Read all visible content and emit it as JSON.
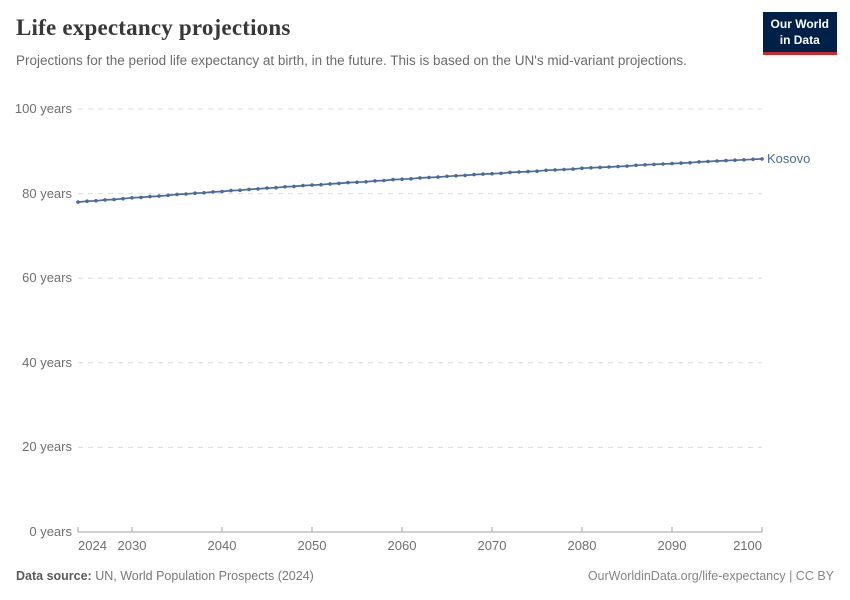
{
  "header": {
    "title": "Life expectancy projections",
    "subtitle": "Projections for the period life expectancy at birth, in the future. This is based on the UN's mid-variant projections."
  },
  "logo": {
    "line1": "Our World",
    "line2": "in Data",
    "bg_color": "#002147",
    "accent_color": "#d0262e"
  },
  "chart_data": {
    "type": "line",
    "title": "Life expectancy projections",
    "xlabel": "",
    "ylabel": "",
    "xlim": [
      2024,
      2100
    ],
    "ylim": [
      0,
      100
    ],
    "x_ticks": [
      2024,
      2030,
      2040,
      2050,
      2060,
      2070,
      2080,
      2090,
      2100
    ],
    "y_ticks": [
      0,
      20,
      40,
      60,
      80,
      100
    ],
    "y_tick_suffix": " years",
    "grid": "horizontal-dashed",
    "grid_color": "#dcdcdc",
    "axis_color": "#a3a3a3",
    "tick_label_color": "#6f6f6f",
    "legend_position": "end-of-line",
    "series": [
      {
        "name": "Kosovo",
        "color": "#4C6A9C",
        "x": [
          2024,
          2025,
          2026,
          2027,
          2028,
          2029,
          2030,
          2031,
          2032,
          2033,
          2034,
          2035,
          2036,
          2037,
          2038,
          2039,
          2040,
          2041,
          2042,
          2043,
          2044,
          2045,
          2046,
          2047,
          2048,
          2049,
          2050,
          2051,
          2052,
          2053,
          2054,
          2055,
          2056,
          2057,
          2058,
          2059,
          2060,
          2061,
          2062,
          2063,
          2064,
          2065,
          2066,
          2067,
          2068,
          2069,
          2070,
          2071,
          2072,
          2073,
          2074,
          2075,
          2076,
          2077,
          2078,
          2079,
          2080,
          2081,
          2082,
          2083,
          2084,
          2085,
          2086,
          2087,
          2088,
          2089,
          2090,
          2091,
          2092,
          2093,
          2094,
          2095,
          2096,
          2097,
          2098,
          2099,
          2100
        ],
        "values": [
          78.0,
          78.2,
          78.3,
          78.5,
          78.6,
          78.8,
          79.0,
          79.1,
          79.3,
          79.4,
          79.6,
          79.8,
          79.9,
          80.1,
          80.2,
          80.4,
          80.5,
          80.7,
          80.8,
          81.0,
          81.1,
          81.3,
          81.4,
          81.6,
          81.7,
          81.9,
          82.0,
          82.1,
          82.3,
          82.4,
          82.6,
          82.7,
          82.8,
          83.0,
          83.1,
          83.3,
          83.4,
          83.5,
          83.7,
          83.8,
          83.9,
          84.1,
          84.2,
          84.3,
          84.5,
          84.6,
          84.7,
          84.8,
          85.0,
          85.1,
          85.2,
          85.3,
          85.5,
          85.6,
          85.7,
          85.8,
          86.0,
          86.1,
          86.2,
          86.3,
          86.4,
          86.5,
          86.7,
          86.8,
          86.9,
          87.0,
          87.1,
          87.2,
          87.3,
          87.5,
          87.6,
          87.7,
          87.8,
          87.9,
          88.0,
          88.1,
          88.2
        ]
      }
    ]
  },
  "footer": {
    "source_label": "Data source:",
    "source_text": " UN, World Population Prospects (2024)",
    "link_text": "OurWorldinData.org/life-expectancy | CC BY"
  }
}
